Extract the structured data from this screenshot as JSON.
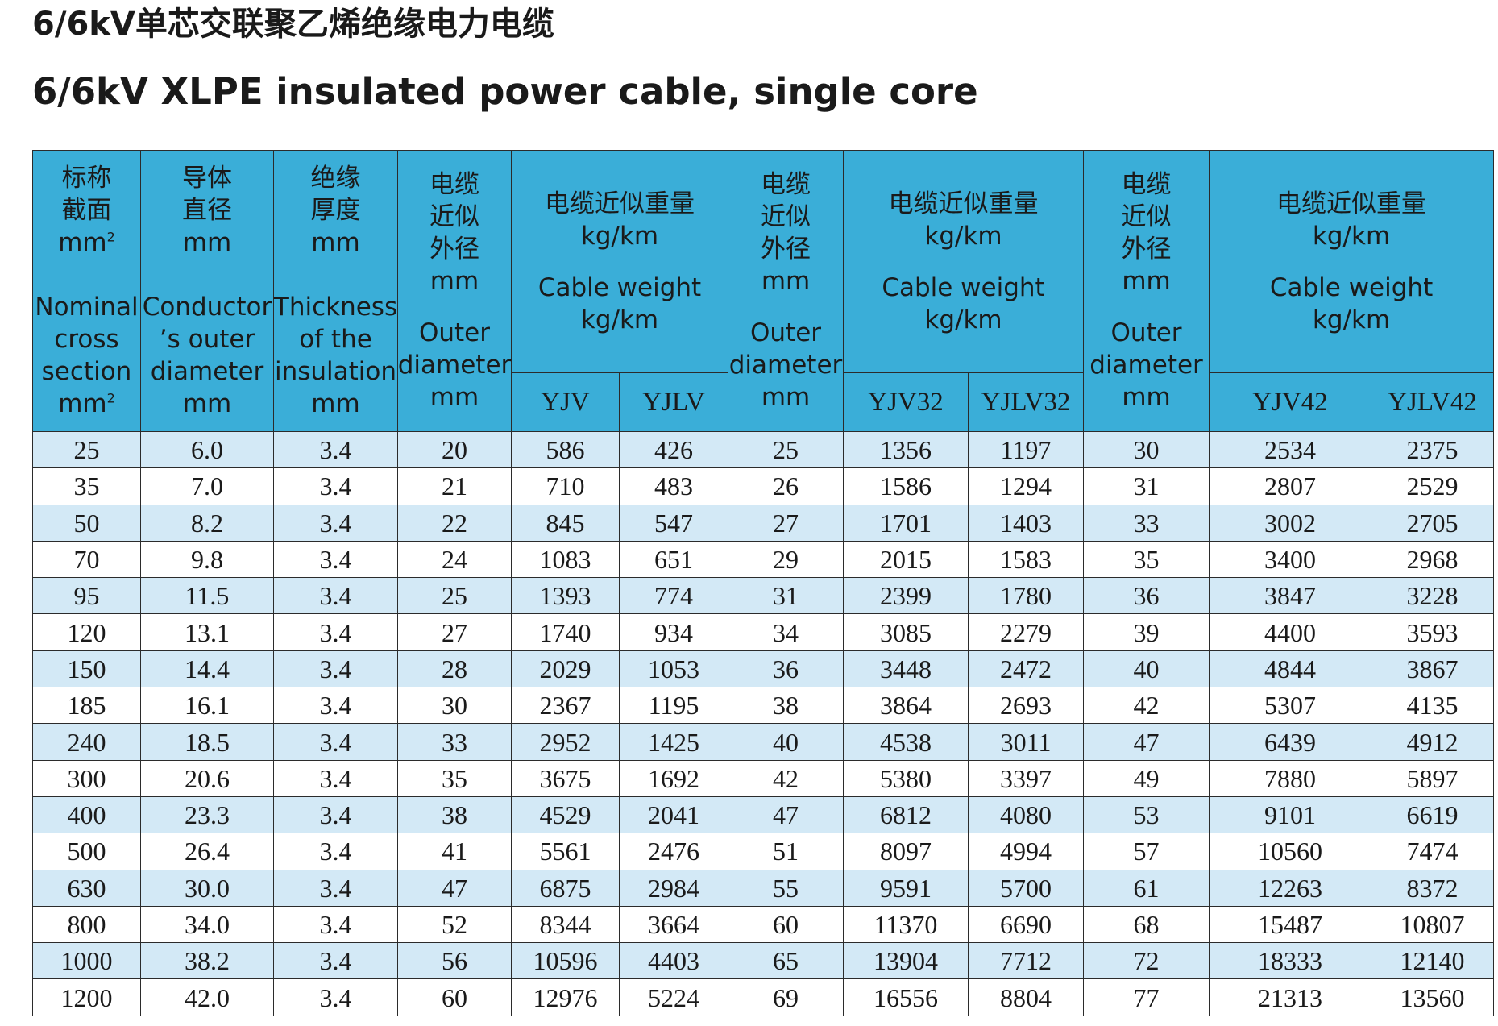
{
  "title_cn": "6/6kV单芯交联聚乙烯绝缘电力电缆",
  "title_en": "6/6kV XLPE insulated power cable, single core",
  "headers": {
    "nominal": {
      "cn": "标称\n截面",
      "cn_unit": "mm",
      "en": "Nominal\ncross\nsection",
      "en_unit": "mm",
      "sup": "2"
    },
    "conductor": {
      "cn": "导体\n直径",
      "cn_unit": "mm",
      "en": "Conductor\n’s outer\ndiameter",
      "en_unit": "mm"
    },
    "insulation": {
      "cn": "绝缘\n厚度",
      "cn_unit": "mm",
      "en": "Thickness\nof the\ninsulation",
      "en_unit": "mm"
    },
    "outer_cn": "电缆\n近似\n外径",
    "outer_cn_unit": "mm",
    "outer_en": "Outer\ndiameter",
    "outer_en_unit": "mm",
    "weight_cn": "电缆近似重量",
    "weight_unit": "kg/km",
    "weight_en": "Cable weight",
    "yjv": "YJV",
    "yjlv": "YJLV",
    "yjv32": "YJV32",
    "yjlv32": "YJLV32",
    "yjv42": "YJV42",
    "yjlv42": "YJLV42"
  },
  "rows": [
    [
      "25",
      "6.0",
      "3.4",
      "20",
      "586",
      "426",
      "25",
      "1356",
      "1197",
      "30",
      "2534",
      "2375"
    ],
    [
      "35",
      "7.0",
      "3.4",
      "21",
      "710",
      "483",
      "26",
      "1586",
      "1294",
      "31",
      "2807",
      "2529"
    ],
    [
      "50",
      "8.2",
      "3.4",
      "22",
      "845",
      "547",
      "27",
      "1701",
      "1403",
      "33",
      "3002",
      "2705"
    ],
    [
      "70",
      "9.8",
      "3.4",
      "24",
      "1083",
      "651",
      "29",
      "2015",
      "1583",
      "35",
      "3400",
      "2968"
    ],
    [
      "95",
      "11.5",
      "3.4",
      "25",
      "1393",
      "774",
      "31",
      "2399",
      "1780",
      "36",
      "3847",
      "3228"
    ],
    [
      "120",
      "13.1",
      "3.4",
      "27",
      "1740",
      "934",
      "34",
      "3085",
      "2279",
      "39",
      "4400",
      "3593"
    ],
    [
      "150",
      "14.4",
      "3.4",
      "28",
      "2029",
      "1053",
      "36",
      "3448",
      "2472",
      "40",
      "4844",
      "3867"
    ],
    [
      "185",
      "16.1",
      "3.4",
      "30",
      "2367",
      "1195",
      "38",
      "3864",
      "2693",
      "42",
      "5307",
      "4135"
    ],
    [
      "240",
      "18.5",
      "3.4",
      "33",
      "2952",
      "1425",
      "40",
      "4538",
      "3011",
      "47",
      "6439",
      "4912"
    ],
    [
      "300",
      "20.6",
      "3.4",
      "35",
      "3675",
      "1692",
      "42",
      "5380",
      "3397",
      "49",
      "7880",
      "5897"
    ],
    [
      "400",
      "23.3",
      "3.4",
      "38",
      "4529",
      "2041",
      "47",
      "6812",
      "4080",
      "53",
      "9101",
      "6619"
    ],
    [
      "500",
      "26.4",
      "3.4",
      "41",
      "5561",
      "2476",
      "51",
      "8097",
      "4994",
      "57",
      "10560",
      "7474"
    ],
    [
      "630",
      "30.0",
      "3.4",
      "47",
      "6875",
      "2984",
      "55",
      "9591",
      "5700",
      "61",
      "12263",
      "8372"
    ],
    [
      "800",
      "34.0",
      "3.4",
      "52",
      "8344",
      "3664",
      "60",
      "11370",
      "6690",
      "68",
      "15487",
      "10807"
    ],
    [
      "1000",
      "38.2",
      "3.4",
      "56",
      "10596",
      "4403",
      "65",
      "13904",
      "7712",
      "72",
      "18333",
      "12140"
    ],
    [
      "1200",
      "42.0",
      "3.4",
      "60",
      "12976",
      "5224",
      "69",
      "16556",
      "8804",
      "77",
      "21313",
      "13560"
    ]
  ]
}
